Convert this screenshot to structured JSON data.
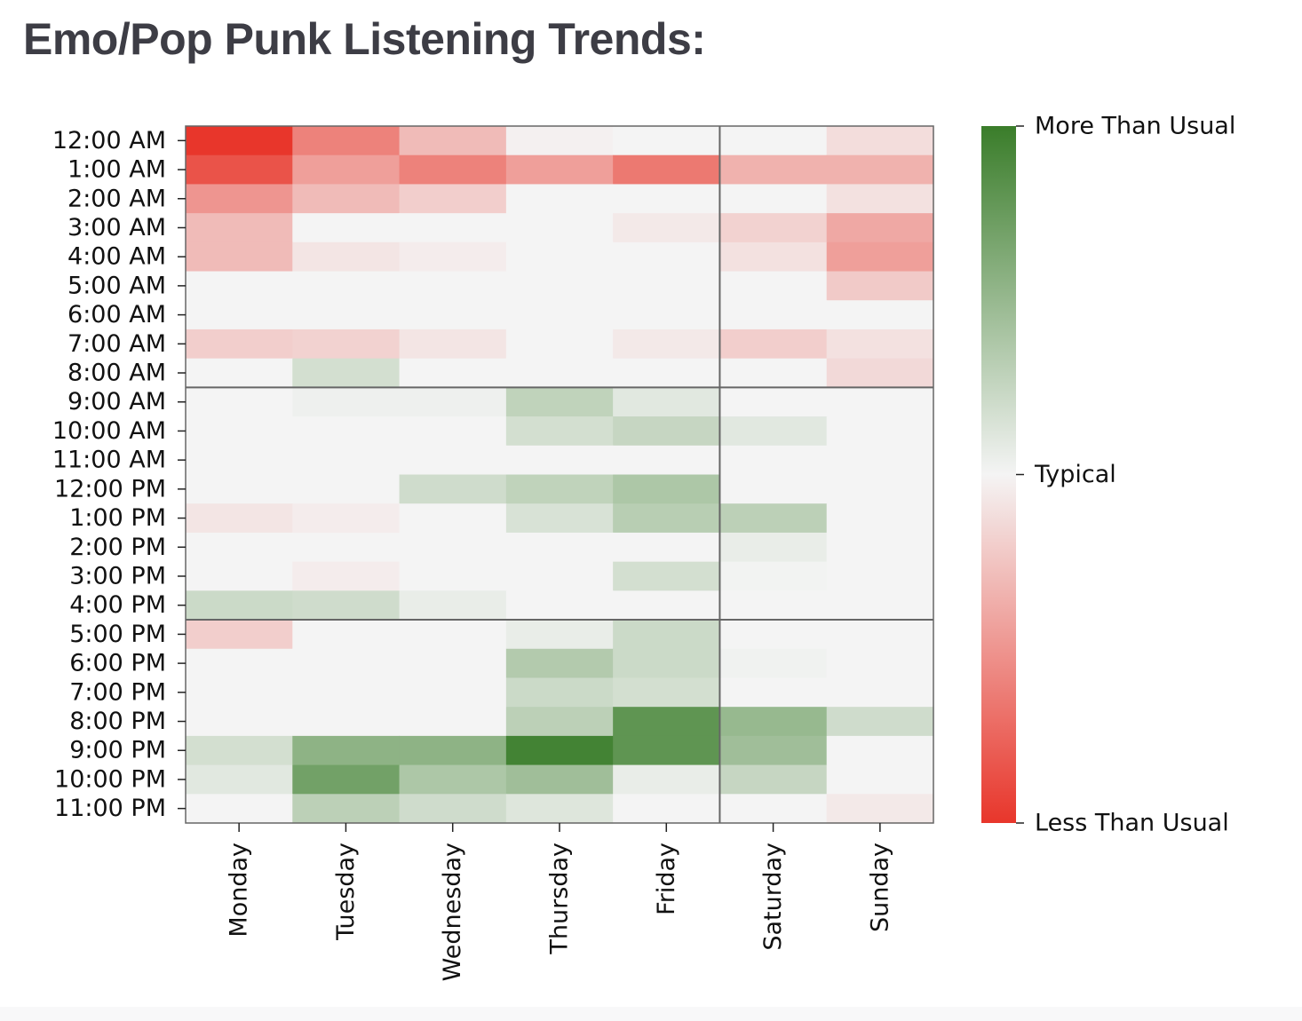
{
  "page": {
    "title": "Emo/Pop Punk Listening Trends:"
  },
  "chart_data": {
    "type": "heatmap",
    "title": "Emo/Pop Punk Listening Trends:",
    "xlabel": "",
    "ylabel": "",
    "x": [
      "Monday",
      "Tuesday",
      "Wednesday",
      "Thursday",
      "Friday",
      "Saturday",
      "Sunday"
    ],
    "y": [
      "12:00 AM",
      "1:00 AM",
      "2:00 AM",
      "3:00 AM",
      "4:00 AM",
      "5:00 AM",
      "6:00 AM",
      "7:00 AM",
      "8:00 AM",
      "9:00 AM",
      "10:00 AM",
      "11:00 AM",
      "12:00 PM",
      "1:00 PM",
      "2:00 PM",
      "3:00 PM",
      "4:00 PM",
      "5:00 PM",
      "6:00 PM",
      "7:00 PM",
      "8:00 PM",
      "9:00 PM",
      "10:00 PM",
      "11:00 PM"
    ],
    "values": [
      [
        -1.0,
        -0.6,
        -0.3,
        -0.02,
        0,
        0,
        -0.12
      ],
      [
        -0.85,
        -0.45,
        -0.6,
        -0.45,
        -0.65,
        -0.35,
        -0.35
      ],
      [
        -0.5,
        -0.3,
        -0.2,
        0,
        0,
        0,
        -0.1
      ],
      [
        -0.3,
        0,
        0,
        0,
        -0.06,
        -0.18,
        -0.4
      ],
      [
        -0.3,
        -0.08,
        -0.04,
        0,
        0,
        -0.1,
        -0.45
      ],
      [
        0,
        0,
        0,
        0,
        0,
        0,
        -0.22
      ],
      [
        0,
        0,
        0,
        0,
        0,
        0,
        0
      ],
      [
        -0.2,
        -0.18,
        -0.08,
        0,
        -0.06,
        -0.2,
        -0.1
      ],
      [
        0,
        0.18,
        0,
        0,
        0,
        0,
        -0.14
      ],
      [
        0,
        0.03,
        0.03,
        0.28,
        0.1,
        0,
        0
      ],
      [
        0,
        0,
        0,
        0.18,
        0.25,
        0.1,
        0
      ],
      [
        0,
        0,
        0,
        0,
        0,
        0,
        0
      ],
      [
        0,
        0,
        0.2,
        0.28,
        0.38,
        0,
        0
      ],
      [
        -0.08,
        -0.04,
        0,
        0.15,
        0.32,
        0.3,
        0
      ],
      [
        0,
        0,
        0,
        0,
        0,
        0.06,
        0
      ],
      [
        0,
        -0.04,
        0,
        0,
        0.18,
        0.01,
        0
      ],
      [
        0.22,
        0.2,
        0.06,
        0,
        0,
        0,
        0
      ],
      [
        -0.2,
        0,
        0,
        0.06,
        0.22,
        0,
        0
      ],
      [
        0,
        0,
        0,
        0.35,
        0.22,
        0.02,
        0
      ],
      [
        0,
        0,
        0,
        0.22,
        0.18,
        0,
        0
      ],
      [
        0,
        0,
        0,
        0.3,
        0.8,
        0.5,
        0.2
      ],
      [
        0.18,
        0.55,
        0.55,
        0.95,
        0.8,
        0.45,
        0
      ],
      [
        0.1,
        0.7,
        0.38,
        0.45,
        0.06,
        0.25,
        0
      ],
      [
        0,
        0.3,
        0.2,
        0.12,
        0,
        0,
        -0.06
      ]
    ],
    "vlim": [
      -1,
      1
    ],
    "colorbar": {
      "tick_labels": [
        "More Than Usual",
        "Typical",
        "Less Than Usual"
      ],
      "tick_values": [
        1,
        0,
        -1
      ]
    },
    "colors": {
      "negative": "#e8362b",
      "neutral": "#f4f4f4",
      "positive": "#3a7d2a"
    },
    "separators": {
      "after_column": "Friday",
      "after_rows": [
        "8:00 AM",
        "4:00 PM"
      ]
    },
    "grid": false,
    "legend_position": "right"
  }
}
